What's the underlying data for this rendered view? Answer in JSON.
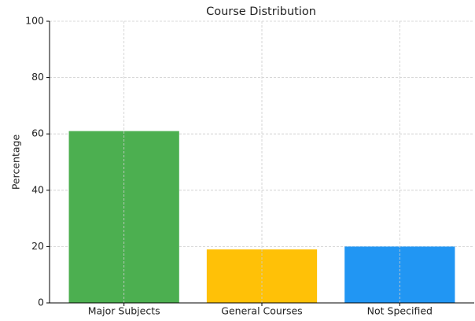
{
  "chart_data": {
    "type": "bar",
    "title": "Course Distribution",
    "ylabel": "Percentage",
    "categories": [
      "Major Subjects",
      "General Courses",
      "Not Specified"
    ],
    "values": [
      61,
      19,
      20
    ],
    "colors": [
      "#4caf50",
      "#ffc107",
      "#2196f3"
    ],
    "ylim": [
      0,
      100
    ],
    "yticks": [
      0,
      20,
      40,
      60,
      80,
      100
    ],
    "grid": true
  }
}
